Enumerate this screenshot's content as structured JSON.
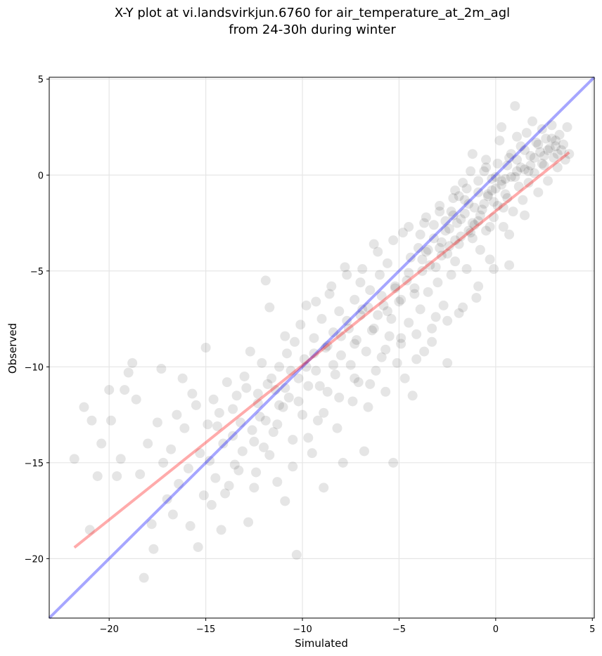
{
  "chart_data": {
    "type": "scatter",
    "title_line1": "X-Y plot at vi.landsvirkjun.6760 for air_temperature_at_2m_agl",
    "title_line2": "from 24-30h during winter",
    "xlabel": "Simulated",
    "ylabel": "Observed",
    "xlim": [
      -23.1,
      5.1
    ],
    "ylim": [
      -23.1,
      5.1
    ],
    "xticks": [
      -20,
      -15,
      -10,
      -5,
      0,
      5
    ],
    "yticks": [
      -20,
      -15,
      -10,
      -5,
      0,
      5
    ],
    "xtick_labels": [
      "−20",
      "−15",
      "−10",
      "−5",
      "0",
      "5"
    ],
    "ytick_labels": [
      "−20",
      "−15",
      "−10",
      "−5",
      "0",
      "5"
    ],
    "grid": true,
    "point_color": "#000000",
    "point_alpha": 0.1,
    "points": [
      [
        -21.8,
        -14.8
      ],
      [
        -21.3,
        -12.1
      ],
      [
        -21.0,
        -18.5
      ],
      [
        -20.9,
        -12.8
      ],
      [
        -20.6,
        -15.7
      ],
      [
        -20.4,
        -14.0
      ],
      [
        -20.0,
        -11.2
      ],
      [
        -19.9,
        -12.8
      ],
      [
        -19.6,
        -15.7
      ],
      [
        -19.4,
        -14.8
      ],
      [
        -19.2,
        -11.2
      ],
      [
        -19.0,
        -10.3
      ],
      [
        -18.8,
        -9.8
      ],
      [
        -18.6,
        -11.7
      ],
      [
        -18.4,
        -15.6
      ],
      [
        -18.2,
        -21.0
      ],
      [
        -18.0,
        -14.0
      ],
      [
        -17.8,
        -18.2
      ],
      [
        -17.7,
        -19.5
      ],
      [
        -17.5,
        -12.9
      ],
      [
        -17.3,
        -10.1
      ],
      [
        -17.2,
        -15.0
      ],
      [
        -17.0,
        -16.9
      ],
      [
        -16.8,
        -14.3
      ],
      [
        -16.7,
        -17.7
      ],
      [
        -16.5,
        -12.5
      ],
      [
        -16.4,
        -16.1
      ],
      [
        -16.2,
        -10.6
      ],
      [
        -16.1,
        -13.2
      ],
      [
        -15.9,
        -15.3
      ],
      [
        -15.8,
        -18.3
      ],
      [
        -15.7,
        -11.4
      ],
      [
        -15.5,
        -12.0
      ],
      [
        -15.4,
        -19.4
      ],
      [
        -15.3,
        -14.5
      ],
      [
        -15.1,
        -16.7
      ],
      [
        -15.0,
        -9.0
      ],
      [
        -14.9,
        -13.0
      ],
      [
        -14.7,
        -17.2
      ],
      [
        -14.6,
        -11.7
      ],
      [
        -14.5,
        -15.8
      ],
      [
        -14.3,
        -12.4
      ],
      [
        -14.2,
        -18.5
      ],
      [
        -14.1,
        -14.0
      ],
      [
        -13.9,
        -10.8
      ],
      [
        -13.8,
        -16.2
      ],
      [
        -13.6,
        -13.6
      ],
      [
        -13.5,
        -15.1
      ],
      [
        -13.4,
        -11.5
      ],
      [
        -13.2,
        -12.9
      ],
      [
        -13.1,
        -14.4
      ],
      [
        -13.0,
        -10.5
      ],
      [
        -12.8,
        -18.1
      ],
      [
        -12.7,
        -9.2
      ],
      [
        -12.6,
        -13.3
      ],
      [
        -12.4,
        -15.5
      ],
      [
        -12.3,
        -11.9
      ],
      [
        -12.2,
        -12.6
      ],
      [
        -12.0,
        -14.2
      ],
      [
        -11.9,
        -5.5
      ],
      [
        -11.8,
        -10.9
      ],
      [
        -11.7,
        -6.9
      ],
      [
        -11.5,
        -13.4
      ],
      [
        -11.4,
        -11.2
      ],
      [
        -11.3,
        -16.0
      ],
      [
        -11.2,
        -10.0
      ],
      [
        -11.0,
        -12.1
      ],
      [
        -10.9,
        -17.0
      ],
      [
        -10.8,
        -9.3
      ],
      [
        -10.7,
        -11.6
      ],
      [
        -10.5,
        -13.8
      ],
      [
        -10.4,
        -8.7
      ],
      [
        -10.3,
        -19.8
      ],
      [
        -10.2,
        -10.6
      ],
      [
        -10.0,
        -12.5
      ],
      [
        -9.9,
        -9.6
      ],
      [
        -9.8,
        -6.8
      ],
      [
        -9.7,
        -11.0
      ],
      [
        -9.5,
        -14.5
      ],
      [
        -9.4,
        -8.5
      ],
      [
        -9.3,
        -10.2
      ],
      [
        -9.2,
        -12.8
      ],
      [
        -9.0,
        -7.5
      ],
      [
        -8.9,
        -16.3
      ],
      [
        -8.8,
        -9.0
      ],
      [
        -8.7,
        -11.3
      ],
      [
        -8.6,
        -6.2
      ],
      [
        -8.4,
        -8.2
      ],
      [
        -8.3,
        -10.4
      ],
      [
        -8.2,
        -13.2
      ],
      [
        -8.1,
        -7.1
      ],
      [
        -8.0,
        -9.4
      ],
      [
        -7.9,
        -15.0
      ],
      [
        -7.8,
        -4.8
      ],
      [
        -7.6,
        -8.0
      ],
      [
        -7.5,
        -9.9
      ],
      [
        -7.4,
        -11.8
      ],
      [
        -7.3,
        -6.5
      ],
      [
        -7.2,
        -8.6
      ],
      [
        -7.1,
        -10.8
      ],
      [
        -7.0,
        -5.6
      ],
      [
        -6.9,
        -7.0
      ],
      [
        -6.8,
        -14.4
      ],
      [
        -6.7,
        -9.2
      ],
      [
        -6.6,
        -12.1
      ],
      [
        -6.5,
        -6.0
      ],
      [
        -6.4,
        -8.1
      ],
      [
        -6.3,
        -3.6
      ],
      [
        -6.2,
        -10.2
      ],
      [
        -6.1,
        -7.3
      ],
      [
        -6.0,
        -5.2
      ],
      [
        -5.9,
        -9.5
      ],
      [
        -5.8,
        -6.8
      ],
      [
        -5.7,
        -11.3
      ],
      [
        -5.6,
        -4.6
      ],
      [
        -5.5,
        -8.4
      ],
      [
        -5.4,
        -7.5
      ],
      [
        -5.3,
        -15.0
      ],
      [
        -5.2,
        -5.9
      ],
      [
        -5.1,
        -9.8
      ],
      [
        -5.0,
        -6.6
      ],
      [
        -4.9,
        -8.8
      ],
      [
        -4.8,
        -3.0
      ],
      [
        -4.7,
        -10.6
      ],
      [
        -4.6,
        -5.5
      ],
      [
        -4.5,
        -7.7
      ],
      [
        -4.4,
        -4.3
      ],
      [
        -4.3,
        -11.5
      ],
      [
        -4.2,
        -6.2
      ],
      [
        -4.1,
        -8.3
      ],
      [
        -4.0,
        -3.8
      ],
      [
        -3.9,
        -7.0
      ],
      [
        -3.8,
        -5.0
      ],
      [
        -3.7,
        -9.2
      ],
      [
        -3.6,
        -2.2
      ],
      [
        -3.5,
        -6.1
      ],
      [
        -3.4,
        -4.7
      ],
      [
        -3.3,
        -8.0
      ],
      [
        -3.2,
        -3.3
      ],
      [
        -3.1,
        -7.4
      ],
      [
        -3.0,
        -5.6
      ],
      [
        -2.9,
        -1.6
      ],
      [
        -2.8,
        -4.2
      ],
      [
        -2.7,
        -6.8
      ],
      [
        -2.6,
        -2.9
      ],
      [
        -2.5,
        -9.8
      ],
      [
        -2.4,
        -3.7
      ],
      [
        -2.3,
        -5.2
      ],
      [
        -2.2,
        -1.2
      ],
      [
        -2.1,
        -4.5
      ],
      [
        -2.0,
        -2.5
      ],
      [
        -1.9,
        -7.2
      ],
      [
        -1.8,
        -3.2
      ],
      [
        -1.7,
        -0.4
      ],
      [
        -1.6,
        -2.0
      ],
      [
        -1.5,
        -4.9
      ],
      [
        -1.4,
        -1.5
      ],
      [
        -1.3,
        -3.0
      ],
      [
        -1.2,
        1.1
      ],
      [
        -1.1,
        -2.6
      ],
      [
        -1.0,
        -6.4
      ],
      [
        -0.9,
        -0.9
      ],
      [
        -0.8,
        -3.9
      ],
      [
        -0.7,
        -1.8
      ],
      [
        -0.6,
        0.2
      ],
      [
        -0.5,
        -2.9
      ],
      [
        -0.4,
        -1.1
      ],
      [
        -0.3,
        -4.4
      ],
      [
        -0.2,
        -0.2
      ],
      [
        -0.1,
        -2.2
      ],
      [
        0.0,
        -0.7
      ],
      [
        0.1,
        -1.6
      ],
      [
        0.2,
        1.8
      ],
      [
        0.3,
        -0.3
      ],
      [
        0.4,
        -2.7
      ],
      [
        0.5,
        -1.0
      ],
      [
        0.6,
        0.5
      ],
      [
        0.7,
        -4.7
      ],
      [
        0.8,
        -0.1
      ],
      [
        0.9,
        -1.9
      ],
      [
        1.0,
        3.6
      ],
      [
        1.1,
        0.8
      ],
      [
        1.2,
        -0.6
      ],
      [
        1.3,
        1.5
      ],
      [
        1.4,
        -1.3
      ],
      [
        1.5,
        0.3
      ],
      [
        1.6,
        2.2
      ],
      [
        1.7,
        -0.4
      ],
      [
        1.8,
        1.0
      ],
      [
        1.9,
        2.8
      ],
      [
        2.0,
        0.1
      ],
      [
        2.1,
        1.7
      ],
      [
        2.2,
        -0.9
      ],
      [
        2.3,
        1.2
      ],
      [
        2.4,
        2.4
      ],
      [
        2.5,
        0.5
      ],
      [
        2.6,
        1.9
      ],
      [
        2.7,
        -0.3
      ],
      [
        2.8,
        1.4
      ],
      [
        2.9,
        2.6
      ],
      [
        3.0,
        0.9
      ],
      [
        3.1,
        1.8
      ],
      [
        3.2,
        0.4
      ],
      [
        3.3,
        2.1
      ],
      [
        3.4,
        1.3
      ],
      [
        3.5,
        1.6
      ],
      [
        3.6,
        0.8
      ],
      [
        3.7,
        2.5
      ],
      [
        3.8,
        1.1
      ],
      [
        -12.5,
        -13.9
      ],
      [
        -12.3,
        -11.4
      ],
      [
        -11.9,
        -12.8
      ],
      [
        -11.6,
        -10.6
      ],
      [
        -11.2,
        -12.0
      ],
      [
        -10.9,
        -11.1
      ],
      [
        -10.6,
        -10.2
      ],
      [
        -10.2,
        -11.8
      ],
      [
        -9.8,
        -10.0
      ],
      [
        -9.4,
        -9.3
      ],
      [
        -9.1,
        -11.0
      ],
      [
        -8.7,
        -8.9
      ],
      [
        -8.4,
        -9.9
      ],
      [
        -8.0,
        -8.4
      ],
      [
        -7.7,
        -7.6
      ],
      [
        -7.3,
        -8.8
      ],
      [
        -7.0,
        -7.3
      ],
      [
        -6.6,
        -6.9
      ],
      [
        -6.3,
        -8.0
      ],
      [
        -5.9,
        -6.3
      ],
      [
        -5.6,
        -7.1
      ],
      [
        -5.2,
        -5.8
      ],
      [
        -4.9,
        -6.5
      ],
      [
        -4.5,
        -5.1
      ],
      [
        -4.2,
        -5.9
      ],
      [
        -3.8,
        -4.4
      ],
      [
        -3.5,
        -3.9
      ],
      [
        -3.1,
        -4.8
      ],
      [
        -2.8,
        -3.5
      ],
      [
        -2.4,
        -2.8
      ],
      [
        -2.1,
        -3.4
      ],
      [
        -1.8,
        -2.3
      ],
      [
        -1.4,
        -2.9
      ],
      [
        -1.1,
        -1.7
      ],
      [
        -0.8,
        -2.1
      ],
      [
        -0.4,
        -1.0
      ],
      [
        -0.1,
        -1.4
      ],
      [
        0.3,
        -0.5
      ],
      [
        0.6,
        -1.2
      ],
      [
        1.0,
        -0.1
      ],
      [
        1.3,
        0.4
      ],
      [
        1.7,
        0.2
      ],
      [
        2.0,
        0.9
      ],
      [
        2.4,
        0.6
      ],
      [
        2.7,
        1.3
      ],
      [
        3.1,
        1.5
      ],
      [
        -2.6,
        -2.4
      ],
      [
        -2.3,
        -1.9
      ],
      [
        -1.9,
        -1.1
      ],
      [
        -1.5,
        -0.7
      ],
      [
        -1.2,
        -2.5
      ],
      [
        -0.9,
        -0.3
      ],
      [
        -0.5,
        0.4
      ],
      [
        -0.2,
        -0.8
      ],
      [
        0.1,
        0.6
      ],
      [
        0.5,
        -0.2
      ],
      [
        0.8,
        1.1
      ],
      [
        1.1,
        0.2
      ],
      [
        1.5,
        1.3
      ],
      [
        1.8,
        0.5
      ],
      [
        2.2,
        1.6
      ],
      [
        2.5,
        1.0
      ],
      [
        2.9,
        1.9
      ],
      [
        3.2,
        1.1
      ],
      [
        -3.9,
        -3.1
      ],
      [
        -3.6,
        -4.0
      ],
      [
        -3.2,
        -2.6
      ],
      [
        -2.9,
        -3.8
      ],
      [
        -2.5,
        -4.1
      ],
      [
        -2.2,
        -2.1
      ],
      [
        -1.9,
        -3.6
      ],
      [
        -1.6,
        -1.3
      ],
      [
        -1.2,
        -3.3
      ],
      [
        -0.9,
        -2.4
      ],
      [
        -0.6,
        -1.5
      ],
      [
        -0.3,
        -2.7
      ],
      [
        0.0,
        -0.1
      ],
      [
        0.4,
        -1.7
      ],
      [
        0.7,
        0.9
      ],
      [
        -14.8,
        -14.9
      ],
      [
        -14.4,
        -13.1
      ],
      [
        -14.0,
        -16.6
      ],
      [
        -13.6,
        -12.2
      ],
      [
        -13.3,
        -15.4
      ],
      [
        -12.9,
        -11.1
      ],
      [
        -12.5,
        -16.3
      ],
      [
        -12.1,
        -9.8
      ],
      [
        -11.7,
        -14.6
      ],
      [
        -11.3,
        -13.0
      ],
      [
        -10.9,
        -8.4
      ],
      [
        -10.5,
        -15.2
      ],
      [
        -10.1,
        -7.8
      ],
      [
        -9.7,
        -13.7
      ],
      [
        -9.3,
        -6.6
      ],
      [
        -8.9,
        -12.4
      ],
      [
        -8.5,
        -5.8
      ],
      [
        -8.1,
        -11.6
      ],
      [
        -7.7,
        -5.2
      ],
      [
        -7.3,
        -10.6
      ],
      [
        -6.9,
        -4.9
      ],
      [
        -6.5,
        -10.9
      ],
      [
        -6.1,
        -4.0
      ],
      [
        -5.7,
        -9.1
      ],
      [
        -5.3,
        -3.4
      ],
      [
        -4.9,
        -8.5
      ],
      [
        -4.5,
        -2.7
      ],
      [
        -4.1,
        -9.6
      ],
      [
        -3.7,
        -2.5
      ],
      [
        -3.3,
        -8.7
      ],
      [
        -2.9,
        -1.9
      ],
      [
        -2.5,
        -7.6
      ],
      [
        -2.1,
        -0.8
      ],
      [
        -1.7,
        -6.9
      ],
      [
        -1.3,
        0.2
      ],
      [
        -0.9,
        -5.8
      ],
      [
        -0.5,
        0.8
      ],
      [
        -0.1,
        -4.9
      ],
      [
        0.3,
        2.5
      ],
      [
        0.7,
        -3.1
      ],
      [
        1.1,
        2.0
      ],
      [
        1.5,
        -2.1
      ]
    ]
  }
}
